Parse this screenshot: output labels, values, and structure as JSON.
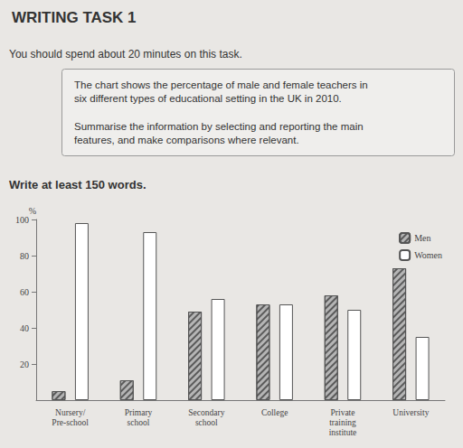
{
  "chart_data": {
    "type": "bar",
    "title": "WRITING TASK 1",
    "annotations": [
      "You should spend about 20 minutes on this task.",
      "The chart shows the percentage of male and female teachers in six different types of educational setting in the UK in 2010.",
      "Summarise the information by selecting and reporting the main features, and make comparisons where relevant.",
      "Write at least 150 words."
    ],
    "y_label": "%",
    "categories": [
      "Nursery/\nPre-school",
      "Primary\nschool",
      "Secondary\nschool",
      "College",
      "Private\ntraining\ninstitute",
      "University"
    ],
    "series": [
      {
        "name": "Men",
        "color": "#b5b5b5",
        "values": [
          5,
          11,
          49,
          53,
          58,
          73
        ]
      },
      {
        "name": "Women",
        "color": "#ffffff",
        "values": [
          98,
          93,
          56,
          53,
          50,
          35
        ]
      }
    ],
    "ylim": [
      0,
      100
    ],
    "yticks": [
      20,
      40,
      60,
      80,
      100
    ],
    "grid": false,
    "legend": "upper right"
  }
}
